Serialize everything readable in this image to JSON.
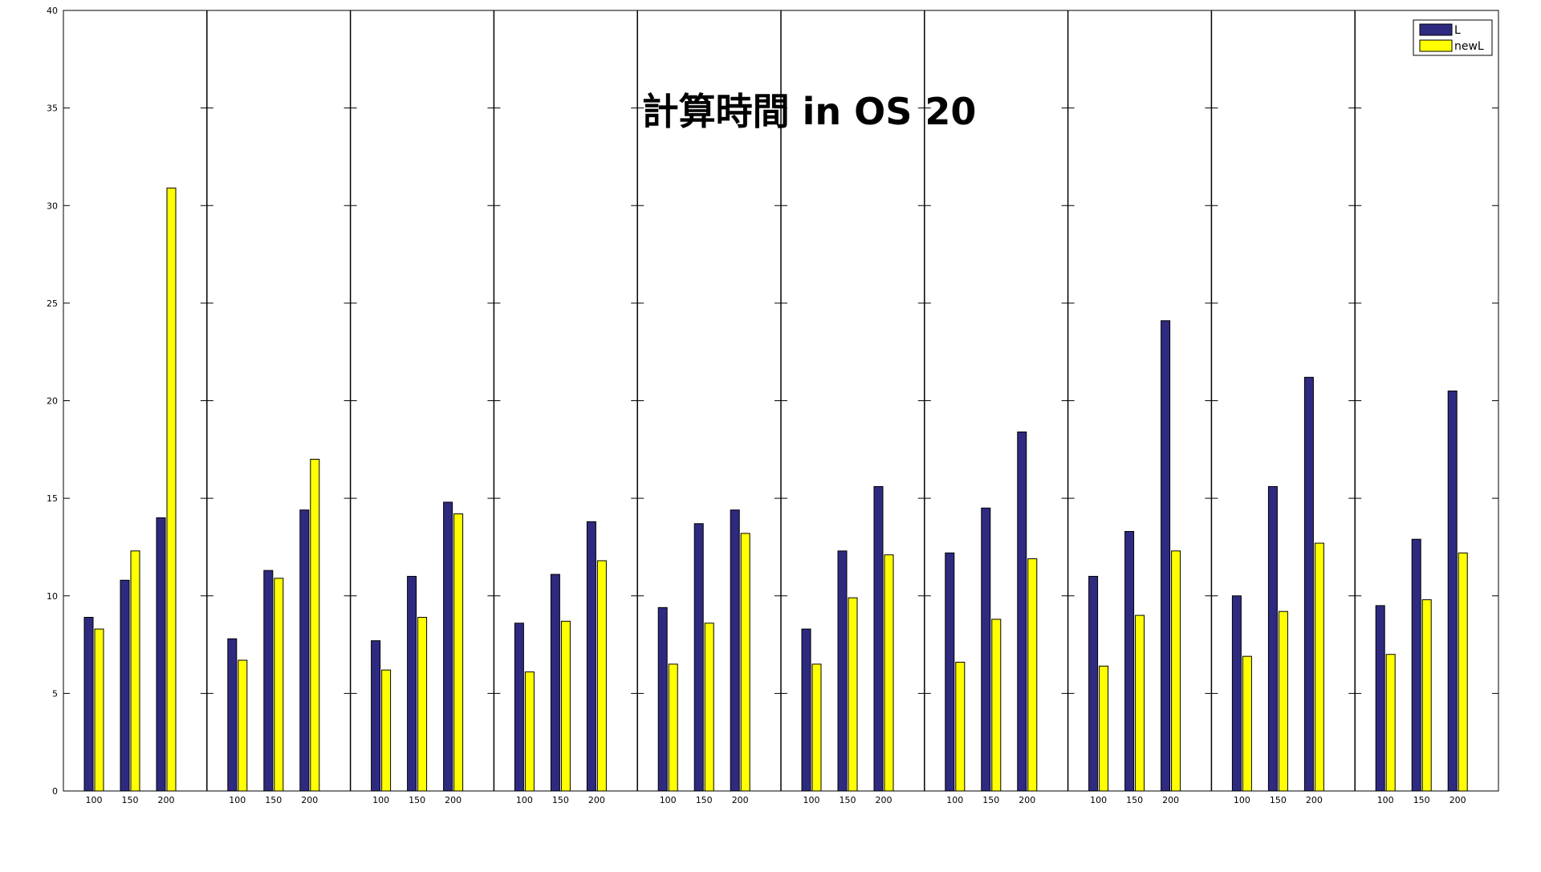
{
  "chart_data": {
    "type": "bar",
    "title": "計算時間 in OS 20",
    "xlabel": "",
    "ylabel": "",
    "ylim": [
      0,
      40
    ],
    "yticks": [
      0,
      5,
      10,
      15,
      20,
      25,
      30,
      35,
      40
    ],
    "categories": [
      "100",
      "150",
      "200"
    ],
    "groups": 10,
    "legend_position": "top-right",
    "grid": false,
    "series": [
      {
        "name": "L",
        "color": "#2e2a80",
        "values": [
          [
            8.9,
            10.8,
            14.0
          ],
          [
            7.8,
            11.3,
            14.4
          ],
          [
            7.7,
            11.0,
            14.8
          ],
          [
            8.6,
            11.1,
            13.8
          ],
          [
            9.4,
            13.7,
            14.4
          ],
          [
            8.3,
            12.3,
            15.6
          ],
          [
            12.2,
            14.5,
            18.4
          ],
          [
            11.0,
            13.3,
            24.1
          ],
          [
            10.0,
            15.6,
            21.2
          ],
          [
            9.5,
            12.9,
            20.5
          ]
        ]
      },
      {
        "name": "newL",
        "color": "#ffff00",
        "values": [
          [
            8.3,
            12.3,
            30.9
          ],
          [
            6.7,
            10.9,
            17.0
          ],
          [
            6.2,
            8.9,
            14.2
          ],
          [
            6.1,
            8.7,
            11.8
          ],
          [
            6.5,
            8.6,
            13.2
          ],
          [
            6.5,
            9.9,
            12.1
          ],
          [
            6.6,
            8.8,
            11.9
          ],
          [
            6.4,
            9.0,
            12.3
          ],
          [
            6.9,
            9.2,
            12.7
          ],
          [
            7.0,
            9.8,
            12.2
          ]
        ]
      }
    ]
  }
}
